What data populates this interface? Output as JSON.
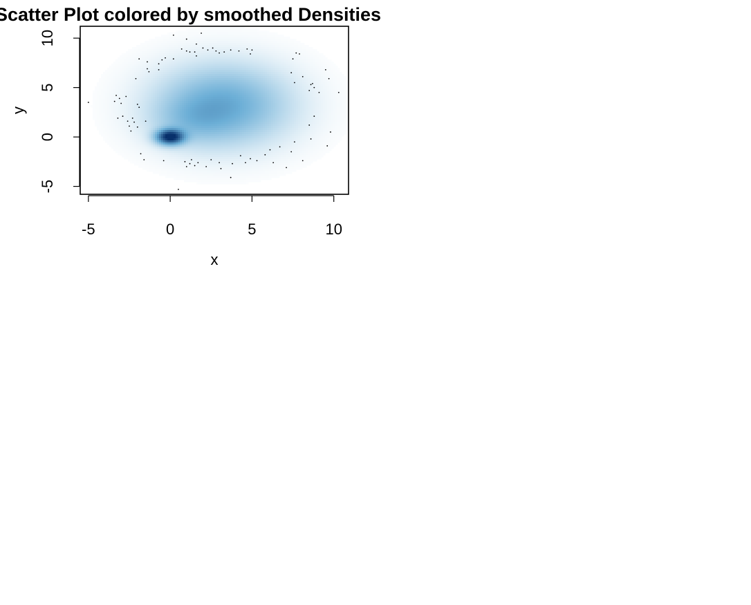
{
  "chart_data": {
    "type": "scatter",
    "title": "Scatter Plot colored by smoothed Densities",
    "xlabel": "x",
    "ylabel": "y",
    "xlim": [
      -5.5,
      10.9
    ],
    "ylim": [
      -5.8,
      11.2
    ],
    "x_ticks": [
      -5,
      0,
      5,
      10
    ],
    "y_ticks": [
      -5,
      0,
      5,
      10
    ],
    "x_tick_labels": [
      "-5",
      "0",
      "5",
      "10"
    ],
    "y_tick_labels": [
      "-5",
      "0",
      "5",
      "10"
    ],
    "grid": false,
    "density_colors": {
      "low": "#ffffff",
      "mid": "#6baed6",
      "high": "#08306b"
    },
    "point_color": "#000000",
    "density_components": [
      {
        "x": 0.0,
        "y": 0.0,
        "sx": 0.55,
        "sy": 0.5,
        "weight": 1.0
      },
      {
        "x": 3.2,
        "y": 3.2,
        "sx": 2.6,
        "sy": 2.6,
        "weight": 0.42
      },
      {
        "x": 1.2,
        "y": 1.6,
        "sx": 1.5,
        "sy": 1.5,
        "weight": 0.12
      }
    ],
    "outlier_points": [
      [
        -5.0,
        3.5
      ],
      [
        -3.3,
        4.2
      ],
      [
        -3.0,
        3.4
      ],
      [
        -3.1,
        3.9
      ],
      [
        -2.7,
        4.1
      ],
      [
        -3.4,
        3.6
      ],
      [
        -2.9,
        2.1
      ],
      [
        -2.6,
        1.6
      ],
      [
        -2.5,
        1.1
      ],
      [
        -2.3,
        1.9
      ],
      [
        -2.2,
        1.5
      ],
      [
        -2.0,
        3.3
      ],
      [
        -1.9,
        3.0
      ],
      [
        -2.4,
        0.6
      ],
      [
        -1.5,
        1.6
      ],
      [
        -2.0,
        1.0
      ],
      [
        -3.2,
        1.9
      ],
      [
        -1.8,
        -1.7
      ],
      [
        -1.6,
        -2.3
      ],
      [
        -0.4,
        -2.4
      ],
      [
        0.5,
        -5.3
      ],
      [
        0.9,
        -2.5
      ],
      [
        1.0,
        -3.0
      ],
      [
        1.2,
        -2.7
      ],
      [
        1.3,
        -2.3
      ],
      [
        1.5,
        -2.9
      ],
      [
        1.7,
        -2.6
      ],
      [
        2.2,
        -3.0
      ],
      [
        2.5,
        -2.3
      ],
      [
        3.0,
        -2.6
      ],
      [
        3.1,
        -3.2
      ],
      [
        3.8,
        -2.7
      ],
      [
        3.7,
        -4.1
      ],
      [
        4.3,
        -1.9
      ],
      [
        4.6,
        -2.6
      ],
      [
        4.9,
        -2.2
      ],
      [
        5.3,
        -2.4
      ],
      [
        5.8,
        -1.8
      ],
      [
        6.1,
        -1.3
      ],
      [
        6.3,
        -2.6
      ],
      [
        6.7,
        -1.0
      ],
      [
        7.1,
        -3.1
      ],
      [
        7.4,
        -1.5
      ],
      [
        7.6,
        -0.5
      ],
      [
        8.1,
        -2.4
      ],
      [
        8.6,
        -0.2
      ],
      [
        9.6,
        -0.9
      ],
      [
        9.8,
        0.5
      ],
      [
        8.8,
        2.1
      ],
      [
        8.5,
        1.2
      ],
      [
        8.7,
        5.4
      ],
      [
        8.5,
        4.7
      ],
      [
        8.8,
        5.0
      ],
      [
        8.6,
        5.3
      ],
      [
        9.1,
        4.5
      ],
      [
        10.3,
        4.5
      ],
      [
        9.7,
        5.9
      ],
      [
        9.5,
        6.8
      ],
      [
        8.1,
        6.1
      ],
      [
        7.4,
        6.5
      ],
      [
        7.6,
        5.5
      ],
      [
        7.5,
        7.9
      ],
      [
        7.9,
        8.4
      ],
      [
        7.7,
        8.5
      ],
      [
        4.7,
        8.9
      ],
      [
        5.0,
        8.8
      ],
      [
        4.9,
        8.4
      ],
      [
        4.2,
        8.7
      ],
      [
        3.7,
        8.8
      ],
      [
        3.3,
        8.6
      ],
      [
        3.0,
        8.5
      ],
      [
        2.8,
        8.7
      ],
      [
        2.3,
        8.8
      ],
      [
        2.0,
        9.0
      ],
      [
        1.6,
        9.4
      ],
      [
        1.5,
        8.6
      ],
      [
        1.2,
        8.6
      ],
      [
        1.6,
        8.2
      ],
      [
        2.6,
        9.0
      ],
      [
        1.0,
        9.9
      ],
      [
        0.2,
        10.3
      ],
      [
        1.9,
        10.5
      ],
      [
        1.0,
        8.7
      ],
      [
        0.7,
        8.9
      ],
      [
        -0.5,
        7.8
      ],
      [
        -0.7,
        7.4
      ],
      [
        -0.7,
        6.8
      ],
      [
        -1.4,
        7.6
      ],
      [
        -1.4,
        6.9
      ],
      [
        -1.3,
        6.6
      ],
      [
        -1.9,
        7.9
      ],
      [
        -2.1,
        5.9
      ],
      [
        -0.3,
        8.0
      ],
      [
        0.2,
        7.9
      ]
    ]
  }
}
